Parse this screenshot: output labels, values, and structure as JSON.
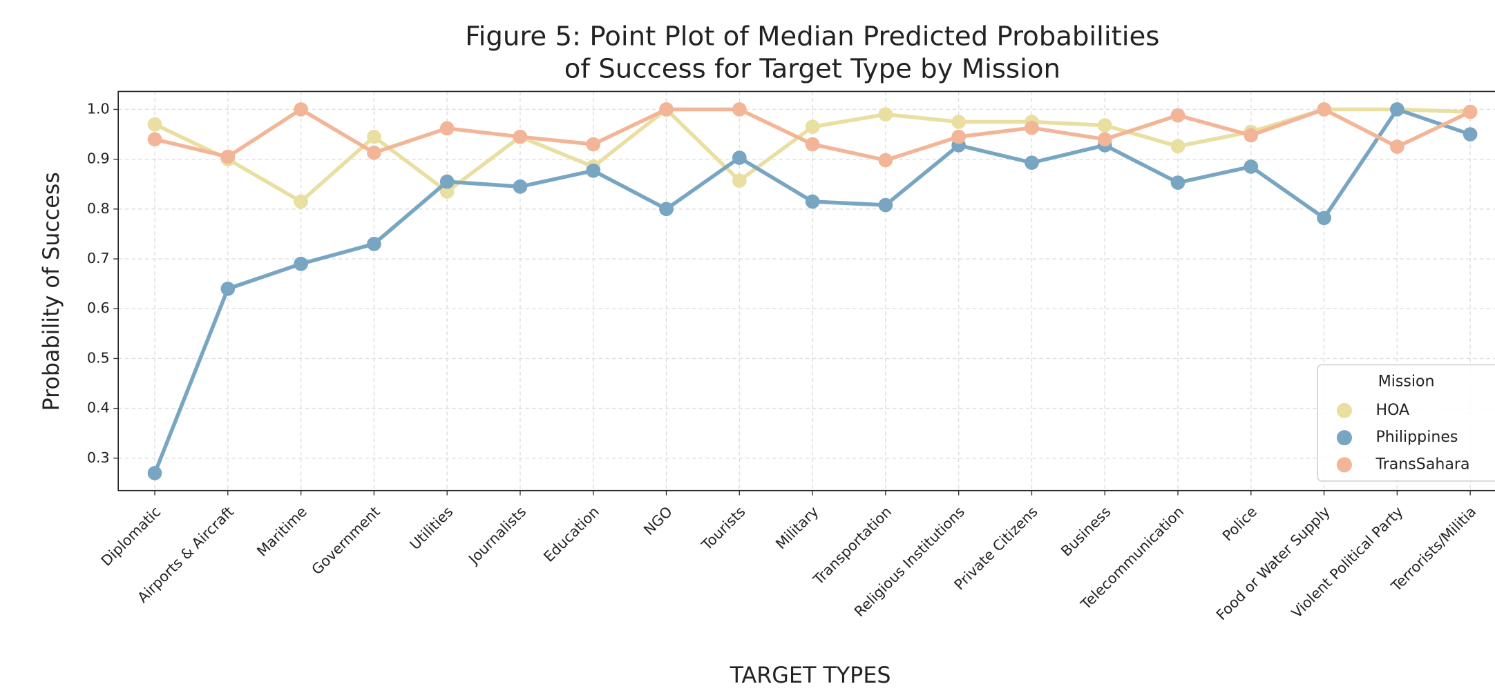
{
  "chart_data": {
    "type": "point",
    "title": [
      "Figure 5: Point Plot of Median Predicted Probabilities",
      "of Success for Target Type by Mission"
    ],
    "x_label": "TARGET TYPES",
    "y_label": "Probability of Success",
    "categories": [
      "Diplomatic",
      "Airports & Aircraft",
      "Maritime",
      "Government",
      "Utilities",
      "Journalists",
      "Education",
      "NGO",
      "Tourists",
      "Military",
      "Transportation",
      "Religious Institutions",
      "Private Citizens",
      "Business",
      "Telecommunication",
      "Police",
      "Food or Water Supply",
      "Violent Political Party",
      "Terrorists/Militia"
    ],
    "series": [
      {
        "name": "HOA",
        "color": "#e9dfa1",
        "values": [
          0.97,
          0.9,
          0.815,
          0.945,
          0.835,
          0.945,
          0.885,
          1.0,
          0.857,
          0.965,
          0.99,
          0.975,
          0.975,
          0.968,
          0.926,
          0.955,
          1.0,
          1.0,
          0.995
        ]
      },
      {
        "name": "Philippines",
        "color": "#78a6c2",
        "values": [
          0.27,
          0.64,
          0.69,
          0.73,
          0.855,
          0.845,
          0.877,
          0.8,
          0.903,
          0.815,
          0.808,
          0.928,
          0.893,
          0.928,
          0.853,
          0.885,
          0.782,
          1.0,
          0.95
        ]
      },
      {
        "name": "TransSahara",
        "color": "#f3b597",
        "values": [
          0.94,
          0.905,
          1.0,
          0.913,
          0.962,
          0.945,
          0.93,
          1.0,
          1.0,
          0.93,
          0.898,
          0.945,
          0.963,
          0.94,
          0.988,
          0.948,
          1.0,
          0.925,
          0.995
        ]
      }
    ],
    "legend_title": "Mission",
    "legend": "lower right",
    "ylim": [
      0.235,
      1.036
    ],
    "yticks": [
      0.3,
      0.4,
      0.5,
      0.6,
      0.7,
      0.8,
      0.9,
      {
        "value": 1.0,
        "label": "1.0"
      }
    ],
    "grid": true
  }
}
